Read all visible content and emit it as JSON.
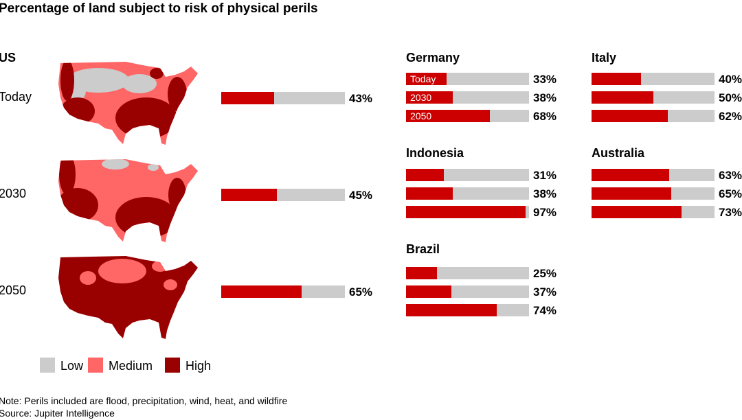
{
  "title": "Percentage of land subject to risk of physical perils",
  "colors": {
    "risk": "#cc0000",
    "track": "#cccccc",
    "low": "#cccccc",
    "medium": "#ff6666",
    "high": "#990000"
  },
  "legend": [
    {
      "label": "Low",
      "color": "#cccccc"
    },
    {
      "label": "Medium",
      "color": "#ff6666"
    },
    {
      "label": "High",
      "color": "#990000"
    }
  ],
  "note": "Note: Perils included are flood, precipitation, wind, heat, and wildfire",
  "source": "Source: Jupiter Intelligence",
  "chart_data": {
    "type": "bar",
    "orientation": "horizontal",
    "xlim": [
      0,
      100
    ],
    "categories": [
      "Today",
      "2030",
      "2050"
    ],
    "panels": [
      {
        "name": "US",
        "values": [
          43,
          45,
          65
        ],
        "labels": [
          "43%",
          "45%",
          "65%"
        ]
      },
      {
        "name": "Germany",
        "values": [
          33,
          38,
          68
        ],
        "labels": [
          "33%",
          "38%",
          "68%"
        ]
      },
      {
        "name": "Italy",
        "values": [
          40,
          50,
          62
        ],
        "labels": [
          "40%",
          "50%",
          "62%"
        ]
      },
      {
        "name": "Indonesia",
        "values": [
          31,
          38,
          97
        ],
        "labels": [
          "31%",
          "38%",
          "97%"
        ]
      },
      {
        "name": "Australia",
        "values": [
          63,
          65,
          73
        ],
        "labels": [
          "63%",
          "65%",
          "73%"
        ]
      },
      {
        "name": "Brazil",
        "values": [
          25,
          37,
          74
        ],
        "labels": [
          "25%",
          "37%",
          "74%"
        ]
      }
    ]
  }
}
